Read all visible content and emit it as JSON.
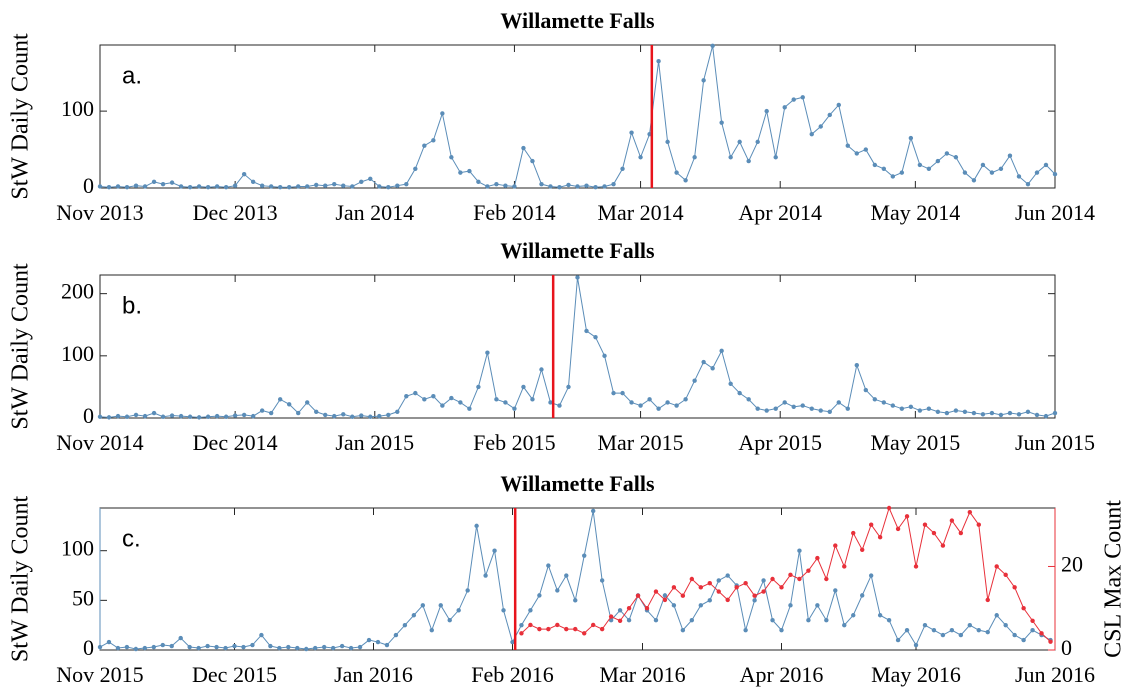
{
  "chart_data": [
    {
      "type": "line",
      "title": "Willamette Falls",
      "annotation": "a.",
      "ylabel": "StW Daily Count",
      "x": [
        0,
        2,
        4,
        6,
        8,
        10,
        12,
        14,
        16,
        18,
        20,
        22,
        24,
        26,
        28,
        30,
        32,
        34,
        36,
        38,
        40,
        42,
        44,
        46,
        48,
        50,
        52,
        54,
        56,
        58,
        60,
        62,
        64,
        66,
        68,
        70,
        72,
        74,
        76,
        78,
        80,
        82,
        84,
        86,
        88,
        90,
        92,
        94,
        96,
        98,
        100,
        102,
        104,
        106,
        108,
        110,
        112,
        114,
        116,
        118,
        120,
        122,
        124,
        126,
        128,
        130,
        132,
        134,
        136,
        138,
        140,
        142,
        144,
        146,
        148,
        150,
        152,
        154,
        156,
        158,
        160,
        162,
        164,
        166,
        168,
        170,
        172,
        174,
        176,
        178,
        180,
        182,
        184,
        186,
        188,
        190,
        192,
        194,
        196,
        198,
        200,
        202,
        204,
        206,
        208,
        210,
        212
      ],
      "xlim": [
        0,
        212
      ],
      "xticks": [
        {
          "value": 0,
          "label": "Nov 2013"
        },
        {
          "value": 30,
          "label": "Dec 2013"
        },
        {
          "value": 61,
          "label": "Jan 2014"
        },
        {
          "value": 92,
          "label": "Feb 2014"
        },
        {
          "value": 120,
          "label": "Mar 2014"
        },
        {
          "value": 151,
          "label": "Apr 2014"
        },
        {
          "value": 181,
          "label": "May 2014"
        },
        {
          "value": 212,
          "label": "Jun 2014"
        }
      ],
      "ylim": [
        0,
        186
      ],
      "yticks": [
        0,
        100
      ],
      "vline_x": 122.5,
      "vline_color": "#e8141c",
      "series": [
        {
          "name": "StW Daily Count",
          "color": "#5b8db8",
          "axis": "y",
          "values": [
            2,
            1,
            2,
            1,
            3,
            2,
            8,
            5,
            7,
            2,
            1,
            2,
            1,
            2,
            1,
            3,
            18,
            8,
            3,
            2,
            1,
            1,
            2,
            2,
            4,
            3,
            5,
            3,
            2,
            8,
            12,
            2,
            1,
            3,
            5,
            25,
            55,
            62,
            97,
            40,
            20,
            22,
            8,
            2,
            5,
            3,
            2,
            52,
            35,
            5,
            2,
            1,
            4,
            2,
            3,
            1,
            2,
            5,
            25,
            72,
            40,
            70,
            165,
            60,
            20,
            10,
            40,
            140,
            185,
            85,
            40,
            60,
            35,
            60,
            100,
            40,
            105,
            115,
            118,
            70,
            80,
            95,
            108,
            55,
            45,
            50,
            30,
            25,
            15,
            20,
            65,
            30,
            25,
            35,
            45,
            40,
            20,
            10,
            30,
            20,
            25,
            42,
            15,
            5,
            20,
            30,
            18
          ]
        }
      ]
    },
    {
      "type": "line",
      "title": "Willamette Falls",
      "annotation": "b.",
      "ylabel": "StW Daily Count",
      "x": [
        0,
        2,
        4,
        6,
        8,
        10,
        12,
        14,
        16,
        18,
        20,
        22,
        24,
        26,
        28,
        30,
        32,
        34,
        36,
        38,
        40,
        42,
        44,
        46,
        48,
        50,
        52,
        54,
        56,
        58,
        60,
        62,
        64,
        66,
        68,
        70,
        72,
        74,
        76,
        78,
        80,
        82,
        84,
        86,
        88,
        90,
        92,
        94,
        96,
        98,
        100,
        102,
        104,
        106,
        108,
        110,
        112,
        114,
        116,
        118,
        120,
        122,
        124,
        126,
        128,
        130,
        132,
        134,
        136,
        138,
        140,
        142,
        144,
        146,
        148,
        150,
        152,
        154,
        156,
        158,
        160,
        162,
        164,
        166,
        168,
        170,
        172,
        174,
        176,
        178,
        180,
        182,
        184,
        186,
        188,
        190,
        192,
        194,
        196,
        198,
        200,
        202,
        204,
        206,
        208,
        210,
        212
      ],
      "xlim": [
        0,
        212
      ],
      "xticks": [
        {
          "value": 0,
          "label": "Nov 2014"
        },
        {
          "value": 30,
          "label": "Dec 2014"
        },
        {
          "value": 61,
          "label": "Jan 2015"
        },
        {
          "value": 92,
          "label": "Feb 2015"
        },
        {
          "value": 120,
          "label": "Mar 2015"
        },
        {
          "value": 151,
          "label": "Apr 2015"
        },
        {
          "value": 181,
          "label": "May 2015"
        },
        {
          "value": 212,
          "label": "Jun 2015"
        }
      ],
      "ylim": [
        0,
        230
      ],
      "yticks": [
        0,
        100,
        200
      ],
      "vline_x": 100.6,
      "vline_color": "#e8141c",
      "series": [
        {
          "name": "StW Daily Count",
          "color": "#5b8db8",
          "axis": "y",
          "values": [
            2,
            1,
            3,
            2,
            5,
            3,
            8,
            2,
            4,
            3,
            2,
            1,
            2,
            3,
            2,
            4,
            5,
            3,
            12,
            8,
            30,
            22,
            8,
            25,
            10,
            5,
            3,
            6,
            2,
            4,
            2,
            3,
            5,
            10,
            35,
            40,
            30,
            35,
            20,
            32,
            25,
            15,
            50,
            105,
            30,
            25,
            15,
            50,
            30,
            78,
            25,
            20,
            50,
            226,
            140,
            130,
            100,
            40,
            40,
            25,
            20,
            30,
            15,
            25,
            20,
            30,
            60,
            90,
            80,
            108,
            55,
            40,
            30,
            15,
            12,
            15,
            25,
            18,
            20,
            15,
            12,
            10,
            25,
            15,
            85,
            45,
            30,
            25,
            20,
            15,
            18,
            12,
            15,
            10,
            8,
            12,
            10,
            8,
            6,
            8,
            5,
            8,
            6,
            10,
            5,
            3,
            8
          ]
        }
      ]
    },
    {
      "type": "line",
      "title": "Willamette Falls",
      "annotation": "c.",
      "ylabel": "StW Daily Count",
      "y2label": "CSL Max Count",
      "x": [
        0,
        2,
        4,
        6,
        8,
        10,
        12,
        14,
        16,
        18,
        20,
        22,
        24,
        26,
        28,
        30,
        32,
        34,
        36,
        38,
        40,
        42,
        44,
        46,
        48,
        50,
        52,
        54,
        56,
        58,
        60,
        62,
        64,
        66,
        68,
        70,
        72,
        74,
        76,
        78,
        80,
        82,
        84,
        86,
        88,
        90,
        92,
        94,
        96,
        98,
        100,
        102,
        104,
        106,
        108,
        110,
        112,
        114,
        116,
        118,
        120,
        122,
        124,
        126,
        128,
        130,
        132,
        134,
        136,
        138,
        140,
        142,
        144,
        146,
        148,
        150,
        152,
        154,
        156,
        158,
        160,
        162,
        164,
        166,
        168,
        170,
        172,
        174,
        176,
        178,
        180,
        182,
        184,
        186,
        188,
        190,
        192,
        194,
        196,
        198,
        200,
        202,
        204,
        206,
        208,
        210,
        212
      ],
      "xlim": [
        0,
        213
      ],
      "xticks": [
        {
          "value": 0,
          "label": "Nov 2015"
        },
        {
          "value": 30,
          "label": "Dec 2015"
        },
        {
          "value": 61,
          "label": "Jan 2016"
        },
        {
          "value": 92,
          "label": "Feb 2016"
        },
        {
          "value": 121,
          "label": "Mar 2016"
        },
        {
          "value": 152,
          "label": "Apr 2016"
        },
        {
          "value": 182,
          "label": "May 2016"
        },
        {
          "value": 213,
          "label": "Jun 2016"
        }
      ],
      "ylim": [
        0,
        143
      ],
      "yticks": [
        0,
        50,
        100
      ],
      "y2lim": [
        0,
        34
      ],
      "y2ticks": [
        0,
        20
      ],
      "vline_x": 92.6,
      "vline_color": "#e8141c",
      "series": [
        {
          "name": "StW Daily Count",
          "color": "#5b8db8",
          "axis": "y",
          "values": [
            3,
            8,
            2,
            3,
            1,
            2,
            3,
            5,
            4,
            12,
            3,
            2,
            4,
            3,
            2,
            4,
            3,
            5,
            15,
            4,
            2,
            3,
            2,
            1,
            2,
            3,
            2,
            4,
            2,
            3,
            10,
            8,
            5,
            15,
            25,
            35,
            45,
            20,
            45,
            30,
            40,
            60,
            125,
            75,
            100,
            40,
            8,
            25,
            40,
            55,
            85,
            60,
            75,
            50,
            95,
            140,
            70,
            30,
            40,
            30,
            55,
            40,
            30,
            55,
            45,
            20,
            30,
            45,
            50,
            70,
            75,
            65,
            20,
            50,
            70,
            30,
            20,
            45,
            100,
            30,
            45,
            30,
            60,
            25,
            35,
            55,
            75,
            35,
            30,
            10,
            20,
            5,
            25,
            20,
            15,
            20,
            15,
            25,
            20,
            18,
            35,
            25,
            15,
            10,
            20,
            15,
            10
          ]
        },
        {
          "name": "CSL Max Count",
          "color": "#e8303a",
          "axis": "y2",
          "values": [
            null,
            null,
            null,
            null,
            null,
            null,
            null,
            null,
            null,
            null,
            null,
            null,
            null,
            null,
            null,
            null,
            null,
            null,
            null,
            null,
            null,
            null,
            null,
            null,
            null,
            null,
            null,
            null,
            null,
            null,
            null,
            null,
            null,
            null,
            null,
            null,
            null,
            null,
            null,
            null,
            null,
            null,
            null,
            null,
            null,
            null,
            null,
            4,
            6,
            5,
            5,
            6,
            5,
            5,
            4,
            6,
            5,
            8,
            7,
            10,
            13,
            10,
            14,
            12,
            15,
            13,
            17,
            15,
            16,
            14,
            12,
            15,
            16,
            13,
            14,
            17,
            15,
            18,
            17,
            19,
            22,
            17,
            25,
            20,
            28,
            24,
            30,
            27,
            34,
            29,
            32,
            20,
            30,
            28,
            25,
            31,
            28,
            33,
            30,
            12,
            20,
            18,
            15,
            10,
            7,
            4,
            2
          ]
        }
      ]
    }
  ]
}
